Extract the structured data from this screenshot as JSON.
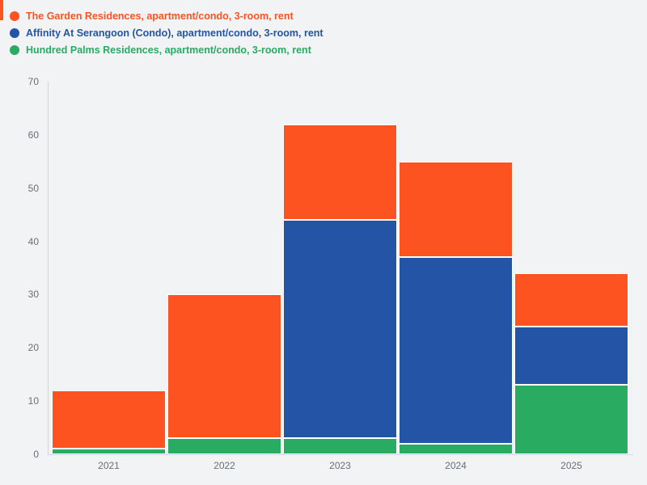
{
  "page": {
    "background_color": "#f2f3f5",
    "edge_accent_color": "#fc5320"
  },
  "axis": {
    "line_color": "#ccd6ea",
    "tick_label_color": "#696f75"
  },
  "legend": {
    "position": "top-left",
    "items": [
      {
        "label": "The Garden Residences, apartment/condo, 3-room, rent",
        "color": "#fc5320"
      },
      {
        "label": "Affinity At Serangoon (Condo), apartment/condo, 3-room, rent",
        "color": "#2354a5"
      },
      {
        "label": "Hundred Palms Residences, apartment/condo, 3-room, rent",
        "color": "#29ab61"
      }
    ]
  },
  "chart_data": {
    "type": "bar",
    "stacked": true,
    "title": "",
    "xlabel": "",
    "ylabel": "",
    "categories": [
      "2021",
      "2022",
      "2023",
      "2024",
      "2025"
    ],
    "series": [
      {
        "name": "The Garden Residences, apartment/condo, 3-room, rent",
        "color": "#fc5320",
        "values": [
          11,
          27,
          18,
          18,
          10
        ]
      },
      {
        "name": "Affinity At Serangoon (Condo), apartment/condo, 3-room, rent",
        "color": "#2354a5",
        "values": [
          0,
          0,
          41,
          35,
          11
        ]
      },
      {
        "name": "Hundred Palms Residences, apartment/condo, 3-room, rent",
        "color": "#29ab61",
        "values": [
          1,
          3,
          3,
          2,
          13
        ]
      }
    ],
    "stack_order_bottom_to_top": [
      "Hundred Palms Residences, apartment/condo, 3-room, rent",
      "Affinity At Serangoon (Condo), apartment/condo, 3-room, rent",
      "The Garden Residences, apartment/condo, 3-room, rent"
    ],
    "ylim": [
      0,
      70
    ],
    "y_ticks": [
      0,
      10,
      20,
      30,
      40,
      50,
      60,
      70
    ],
    "grid": false,
    "legend_position": "top-left"
  }
}
